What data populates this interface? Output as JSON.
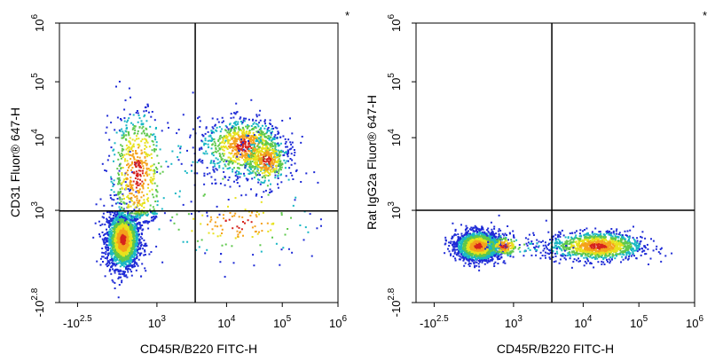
{
  "chart_data": [
    {
      "type": "scatter",
      "title": "",
      "xlabel": "CD45R/B220 FITC-H",
      "ylabel": "CD31 Fluor® 647-H",
      "corner_mark": "*",
      "x_ticks": [
        {
          "label": "-10",
          "sup": "2.5",
          "v": -2.5
        },
        {
          "label": "10",
          "sup": "3",
          "v": 3
        },
        {
          "label": "10",
          "sup": "4",
          "v": 4
        },
        {
          "label": "10",
          "sup": "5",
          "v": 5
        },
        {
          "label": "10",
          "sup": "6",
          "v": 6
        }
      ],
      "y_ticks": [
        {
          "label": "-10",
          "sup": "2.8",
          "v": -2.8
        },
        {
          "label": "10",
          "sup": "3",
          "v": 3
        },
        {
          "label": "10",
          "sup": "4",
          "v": 4
        },
        {
          "label": "10",
          "sup": "5",
          "v": 5
        },
        {
          "label": "10",
          "sup": "6",
          "v": 6
        }
      ],
      "gate": {
        "x": 3.55,
        "y": 2.96
      },
      "populations": [
        {
          "name": "",
          "cx": 0.6,
          "cy": 1.2,
          "sx": 0.55,
          "sy": 0.9,
          "n": 2200
        },
        {
          "name": "",
          "cx": 4.3,
          "cy": 3.9,
          "sx": 0.35,
          "sy": 0.22,
          "n": 900
        },
        {
          "name": "",
          "cx": 4.7,
          "cy": 3.7,
          "sx": 0.2,
          "sy": 0.18,
          "n": 400
        },
        {
          "name": "",
          "cx": 1.6,
          "cy": 3.5,
          "sx": 1.0,
          "sy": 0.5,
          "n": 650
        },
        {
          "name": "",
          "cx": 4.2,
          "cy": 2.2,
          "sx": 0.7,
          "sy": 1.0,
          "n": 160
        }
      ]
    },
    {
      "type": "scatter",
      "title": "",
      "xlabel": "CD45R/B220 FITC-H",
      "ylabel": "Rat IgG2a Fluor® 647-H",
      "corner_mark": "*",
      "x_ticks": [
        {
          "label": "-10",
          "sup": "2.5",
          "v": -2.5
        },
        {
          "label": "10",
          "sup": "3",
          "v": 3
        },
        {
          "label": "10",
          "sup": "4",
          "v": 4
        },
        {
          "label": "10",
          "sup": "5",
          "v": 5
        },
        {
          "label": "10",
          "sup": "6",
          "v": 6
        }
      ],
      "y_ticks": [
        {
          "label": "-10",
          "sup": "2.8",
          "v": -2.8
        },
        {
          "label": "10",
          "sup": "3",
          "v": 3
        },
        {
          "label": "10",
          "sup": "4",
          "v": 4
        },
        {
          "label": "10",
          "sup": "5",
          "v": 5
        },
        {
          "label": "10",
          "sup": "6",
          "v": 6
        }
      ],
      "gate": {
        "x": 3.55,
        "y": 3.0
      },
      "populations": [
        {
          "name": "",
          "cx": 0.5,
          "cy": 0.8,
          "sx": 0.75,
          "sy": 0.45,
          "n": 2000
        },
        {
          "name": "",
          "cx": 4.25,
          "cy": 0.8,
          "sx": 0.4,
          "sy": 0.45,
          "n": 1200
        },
        {
          "name": "",
          "cx": 2.3,
          "cy": 0.8,
          "sx": 0.6,
          "sy": 0.35,
          "n": 200
        }
      ]
    }
  ]
}
